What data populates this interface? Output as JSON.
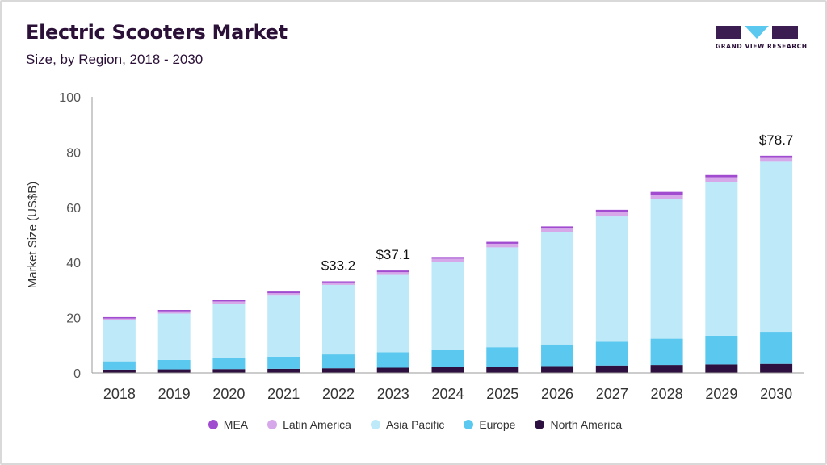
{
  "header": {
    "title": "Electric Scooters Market",
    "subtitle": "Size, by Region, 2018 - 2030"
  },
  "logo": {
    "text": "GRAND VIEW RESEARCH",
    "colors": {
      "dark": "#3b1d52",
      "accent": "#5bc8ef"
    }
  },
  "chart_data": {
    "type": "bar",
    "stacked": true,
    "categories": [
      "2018",
      "2019",
      "2020",
      "2021",
      "2022",
      "2023",
      "2024",
      "2025",
      "2026",
      "2027",
      "2028",
      "2029",
      "2030"
    ],
    "ylabel": "Market Size (US$B)",
    "xlabel": "",
    "ylim": [
      0,
      100
    ],
    "yticks": [
      0,
      20,
      40,
      60,
      80,
      100
    ],
    "grid": false,
    "legend_position": "bottom",
    "series": [
      {
        "name": "North America",
        "color": "#2d1040",
        "values": [
          1.2,
          1.3,
          1.4,
          1.5,
          1.7,
          1.9,
          2.1,
          2.3,
          2.5,
          2.7,
          2.9,
          3.1,
          3.3
        ]
      },
      {
        "name": "Europe",
        "color": "#5bc8ef",
        "values": [
          3.0,
          3.4,
          3.9,
          4.4,
          5.0,
          5.6,
          6.3,
          7.0,
          7.8,
          8.6,
          9.5,
          10.4,
          11.6
        ]
      },
      {
        "name": "Asia Pacific",
        "color": "#bde9f9",
        "values": [
          14.8,
          16.8,
          19.8,
          22.1,
          25.2,
          28.0,
          31.8,
          36.2,
          40.6,
          45.4,
          50.6,
          55.7,
          61.6
        ]
      },
      {
        "name": "Latin America",
        "color": "#d6a8ea",
        "values": [
          0.7,
          0.8,
          0.8,
          0.9,
          0.9,
          1.0,
          1.2,
          1.3,
          1.4,
          1.5,
          1.6,
          1.7,
          1.4
        ]
      },
      {
        "name": "MEA",
        "color": "#a04bd0",
        "values": [
          0.5,
          0.5,
          0.5,
          0.6,
          0.4,
          0.6,
          0.6,
          0.7,
          0.8,
          0.9,
          1.0,
          0.8,
          0.8
        ]
      }
    ],
    "annotations": [
      {
        "category": "2022",
        "label": "$33.2"
      },
      {
        "category": "2023",
        "label": "$37.1"
      },
      {
        "category": "2030",
        "label": "$78.7"
      }
    ]
  },
  "legend": {
    "items": [
      {
        "label": "MEA",
        "color": "#a04bd0"
      },
      {
        "label": "Latin America",
        "color": "#d6a8ea"
      },
      {
        "label": "Asia Pacific",
        "color": "#bde9f9"
      },
      {
        "label": "Europe",
        "color": "#5bc8ef"
      },
      {
        "label": "North America",
        "color": "#2d1040"
      }
    ]
  }
}
